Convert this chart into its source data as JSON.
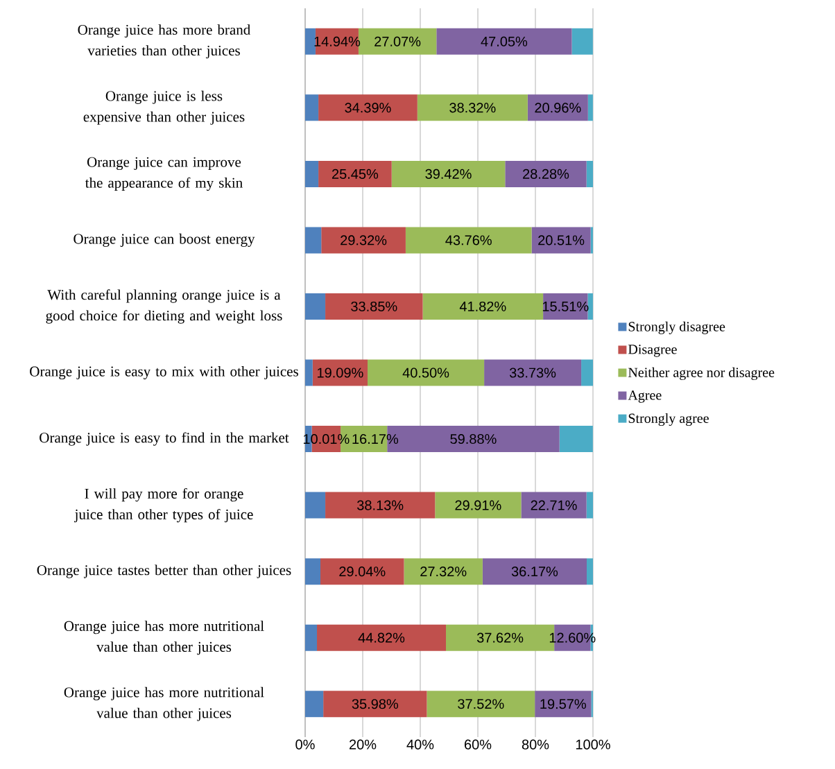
{
  "chart_data": {
    "type": "bar",
    "orientation": "horizontal",
    "stacked": true,
    "categories": [
      "Orange juice has more brand varieties than other juices",
      "Orange juice is less expensive than other juices",
      "Orange juice can improve the appearance of my skin",
      "Orange juice can boost energy",
      "With careful planning orange juice is a good choice for dieting and weight loss",
      "Orange juice is easy to mix with other juices",
      "Orange juice is easy to find in the market",
      "I will pay more for orange juice than other types of juice",
      "Orange juice tastes better than other juices",
      "Orange juice has more nutritional value than other juices",
      "Orange juice has more nutritional value than other juices"
    ],
    "series": [
      {
        "name": "Strongly disagree",
        "color": "#4f81bd",
        "values": [
          3.6,
          4.6,
          4.6,
          5.6,
          7.0,
          2.6,
          2.3,
          7.0,
          5.3,
          4.1,
          6.3
        ]
      },
      {
        "name": "Disagree",
        "color": "#c0504d",
        "values": [
          14.94,
          34.39,
          25.45,
          29.32,
          33.85,
          19.09,
          10.01,
          38.13,
          29.04,
          44.82,
          35.98
        ],
        "value_labels": [
          "14.94%",
          "34.39%",
          "25.45%",
          "29.32%",
          "33.85%",
          "19.09%",
          "10.01%",
          "38.13%",
          "29.04%",
          "44.82%",
          "35.98%"
        ]
      },
      {
        "name": "Neither agree nor disagree",
        "color": "#9bbb59",
        "values": [
          27.07,
          38.32,
          39.42,
          43.76,
          41.82,
          40.5,
          16.17,
          29.91,
          27.32,
          37.62,
          37.52
        ],
        "value_labels": [
          "27.07%",
          "38.32%",
          "39.42%",
          "43.76%",
          "41.82%",
          "40.50%",
          "16.17%",
          "29.91%",
          "27.32%",
          "37.62%",
          "37.52%"
        ]
      },
      {
        "name": "Agree",
        "color": "#8064a2",
        "values": [
          47.05,
          20.96,
          28.28,
          20.51,
          15.51,
          33.73,
          59.88,
          22.71,
          36.17,
          12.6,
          19.57
        ],
        "value_labels": [
          "47.05%",
          "20.96%",
          "28.28%",
          "20.51%",
          "15.51%",
          "33.73%",
          "59.88%",
          "22.71%",
          "36.17%",
          "12.60%",
          "19.57%"
        ]
      },
      {
        "name": "Strongly agree",
        "color": "#4bacc6",
        "values": [
          7.3,
          1.7,
          2.3,
          0.8,
          1.8,
          4.1,
          11.6,
          2.3,
          2.2,
          0.9,
          0.6
        ]
      }
    ],
    "xlim": [
      0,
      100
    ],
    "xticks": [
      {
        "value": 0,
        "label": "0%"
      },
      {
        "value": 20,
        "label": "20%"
      },
      {
        "value": 40,
        "label": "40%"
      },
      {
        "value": 60,
        "label": "60%"
      },
      {
        "value": 80,
        "label": "80%"
      },
      {
        "value": 100,
        "label": "100%"
      }
    ],
    "grid": "x",
    "legend": "right"
  }
}
